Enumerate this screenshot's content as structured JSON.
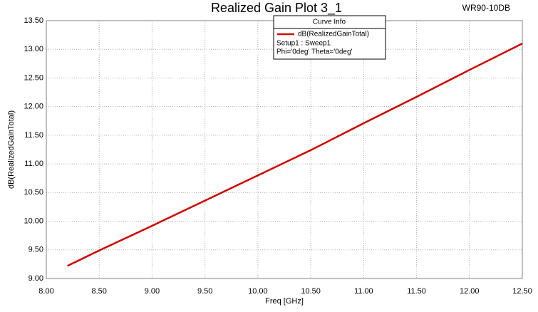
{
  "chart_data": {
    "type": "line",
    "title": "Realized Gain Plot 3_1",
    "tag": "WR90-10DB",
    "x_label": "Freq [GHz]",
    "y_label": "dB(RealizedGainTotal)",
    "legend_title": "Curve Info",
    "legend_info": [
      "Setup1 : Sweep1",
      "Phi='0deg' Theta='0deg'"
    ],
    "x": [
      8.2,
      8.5,
      9.0,
      9.5,
      10.0,
      10.5,
      11.0,
      11.5,
      12.0,
      12.5
    ],
    "series": [
      {
        "name": "dB(RealizedGainTotal)",
        "color": "#d00000",
        "values": [
          9.22,
          9.49,
          9.92,
          10.36,
          10.8,
          11.24,
          11.71,
          12.17,
          12.64,
          13.1
        ]
      }
    ],
    "xlim": [
      8,
      12.5
    ],
    "ylim": [
      9,
      13.5
    ],
    "xticks": [
      {
        "value": 8,
        "label": "8.00"
      },
      {
        "value": 8.5,
        "label": "8.50"
      },
      {
        "value": 9,
        "label": "9.00"
      },
      {
        "value": 9.5,
        "label": "9.50"
      },
      {
        "value": 10,
        "label": "10.00"
      },
      {
        "value": 10.5,
        "label": "10.50"
      },
      {
        "value": 11,
        "label": "11.00"
      },
      {
        "value": 11.5,
        "label": "11.50"
      },
      {
        "value": 12,
        "label": "12.00"
      },
      {
        "value": 12.5,
        "label": "12.50"
      }
    ],
    "yticks": [
      {
        "value": 9,
        "label": "9.00"
      },
      {
        "value": 9.5,
        "label": "9.50"
      },
      {
        "value": 10,
        "label": "10.00"
      },
      {
        "value": 10.5,
        "label": "10.50"
      },
      {
        "value": 11,
        "label": "11.00"
      },
      {
        "value": 11.5,
        "label": "11.50"
      },
      {
        "value": 12,
        "label": "12.00"
      },
      {
        "value": 12.5,
        "label": "12.50"
      },
      {
        "value": 13,
        "label": "13.00"
      },
      {
        "value": 13.5,
        "label": "13.50"
      }
    ],
    "grid": true
  }
}
